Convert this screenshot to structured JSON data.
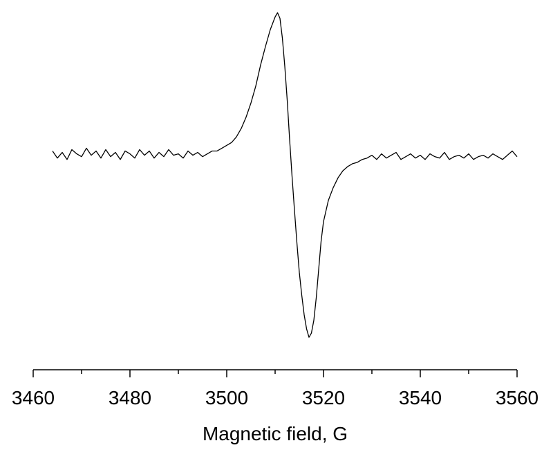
{
  "chart_data": {
    "type": "line",
    "xlabel": "Magnetic field, G",
    "xlim": [
      3460,
      3560
    ],
    "xticks": [
      3460,
      3480,
      3500,
      3520,
      3540,
      3560
    ],
    "xminorticks": [
      3470,
      3490,
      3510,
      3530,
      3550
    ],
    "ylim": [
      -1.53,
      1.09
    ],
    "color": "#000000",
    "x": [
      3464,
      3465,
      3466,
      3467,
      3468,
      3469,
      3470,
      3471,
      3472,
      3473,
      3474,
      3475,
      3476,
      3477,
      3478,
      3479,
      3480,
      3481,
      3482,
      3483,
      3484,
      3485,
      3486,
      3487,
      3488,
      3489,
      3490,
      3491,
      3492,
      3493,
      3494,
      3495,
      3496,
      3497,
      3498,
      3499,
      3500,
      3501,
      3502,
      3503,
      3504,
      3505,
      3506,
      3507,
      3508,
      3509,
      3510,
      3510.5,
      3511,
      3511.5,
      3512,
      3512.5,
      3513,
      3513.5,
      3514,
      3514.5,
      3515,
      3515.5,
      3516,
      3516.5,
      3517,
      3517.5,
      3518,
      3518.5,
      3519,
      3519.5,
      3520,
      3521,
      3522,
      3523,
      3524,
      3525,
      3526,
      3527,
      3528,
      3529,
      3530,
      3531,
      3532,
      3533,
      3534,
      3535,
      3536,
      3537,
      3538,
      3539,
      3540,
      3541,
      3542,
      3543,
      3544,
      3545,
      3546,
      3547,
      3548,
      3549,
      3550,
      3551,
      3552,
      3553,
      3554,
      3555,
      3556,
      3557,
      3558,
      3559,
      3560
    ],
    "values": [
      0.02,
      -0.03,
      0.01,
      -0.04,
      0.03,
      0.0,
      -0.02,
      0.04,
      -0.01,
      0.02,
      -0.03,
      0.03,
      -0.02,
      0.01,
      -0.04,
      0.02,
      0.0,
      -0.03,
      0.03,
      -0.01,
      0.02,
      -0.03,
      0.01,
      -0.02,
      0.03,
      -0.01,
      0.0,
      -0.03,
      0.02,
      -0.01,
      0.01,
      -0.02,
      0.0,
      0.02,
      0.02,
      0.04,
      0.06,
      0.08,
      0.12,
      0.18,
      0.26,
      0.36,
      0.48,
      0.63,
      0.76,
      0.88,
      0.97,
      1.0,
      0.96,
      0.82,
      0.62,
      0.38,
      0.1,
      -0.16,
      -0.4,
      -0.63,
      -0.84,
      -1.0,
      -1.14,
      -1.24,
      -1.3,
      -1.27,
      -1.18,
      -1.02,
      -0.82,
      -0.62,
      -0.48,
      -0.33,
      -0.24,
      -0.17,
      -0.12,
      -0.09,
      -0.07,
      -0.06,
      -0.04,
      -0.03,
      -0.01,
      -0.04,
      0.0,
      -0.03,
      -0.01,
      0.01,
      -0.04,
      -0.02,
      0.0,
      -0.03,
      -0.01,
      -0.04,
      0.0,
      -0.02,
      -0.03,
      0.01,
      -0.04,
      -0.02,
      -0.01,
      -0.03,
      0.0,
      -0.04,
      -0.02,
      -0.01,
      -0.03,
      0.0,
      -0.02,
      -0.04,
      -0.01,
      0.02,
      -0.02
    ]
  }
}
